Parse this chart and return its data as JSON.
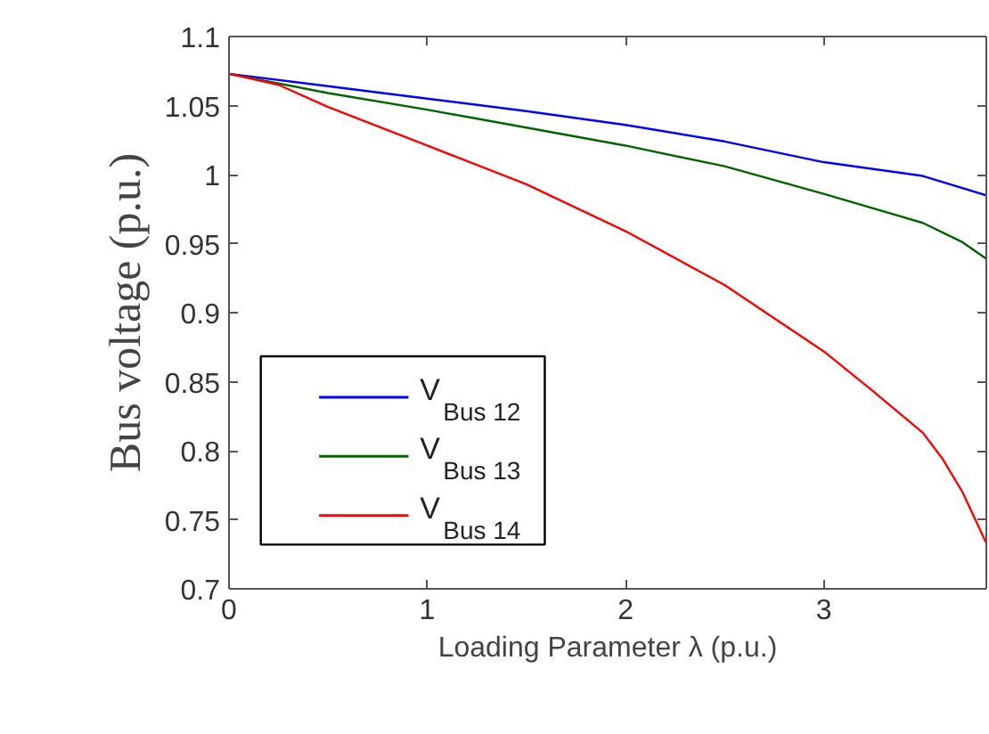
{
  "chart_data": {
    "type": "line",
    "xlabel": "Loading Parameter λ (p.u.)",
    "ylabel": "Bus voltage (p.u.)",
    "xlim": [
      0,
      3.82
    ],
    "ylim": [
      0.7,
      1.1
    ],
    "xticks": [
      0,
      1,
      2,
      3
    ],
    "yticks": [
      0.7,
      0.75,
      0.8,
      0.85,
      0.9,
      0.95,
      1,
      1.05,
      1.1
    ],
    "grid": false,
    "legend": "bottom left",
    "marker": "none",
    "line_style": "solid",
    "series": [
      {
        "name": "V$_{Bus 12}$",
        "color": "#0000ff",
        "x": [
          0,
          0.5,
          1,
          1.5,
          2,
          2.5,
          3,
          3.5,
          3.82
        ],
        "values": [
          1.073,
          1.064,
          1.055,
          1.046,
          1.036,
          1.024,
          1.009,
          0.999,
          0.985
        ]
      },
      {
        "name": "V$_{Bus 13}$",
        "color": "#006400",
        "x": [
          0,
          0.5,
          1,
          1.5,
          2,
          2.5,
          3,
          3.5,
          3.7,
          3.82
        ],
        "values": [
          1.073,
          1.059,
          1.047,
          1.034,
          1.021,
          1.006,
          0.986,
          0.965,
          0.951,
          0.939
        ]
      },
      {
        "name": "V$_{Bus 14}$",
        "color": "#ff0000",
        "x": [
          0,
          0.25,
          0.5,
          1,
          1.5,
          2,
          2.5,
          2.75,
          3,
          3.25,
          3.5,
          3.6,
          3.7,
          3.82
        ],
        "values": [
          1.073,
          1.065,
          1.049,
          1.021,
          0.993,
          0.959,
          0.92,
          0.896,
          0.872,
          0.843,
          0.813,
          0.794,
          0.77,
          0.733
        ]
      }
    ]
  }
}
